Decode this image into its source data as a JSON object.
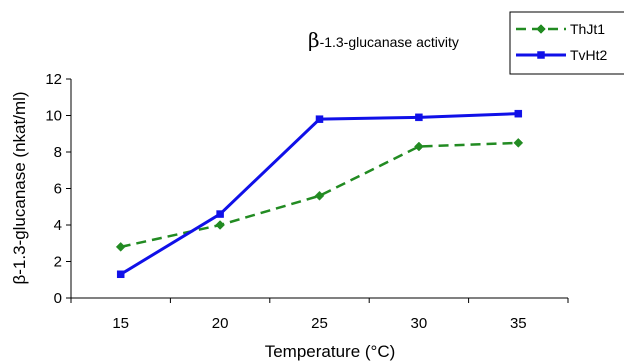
{
  "chart_data": {
    "type": "line",
    "title": "β-1.3-glucanase activity",
    "title_prefix": "β",
    "title_rest": "-1.3-glucanase activity",
    "xlabel": "Temperature (°C)",
    "ylabel": "β-1.3-glucanase (nkat/ml)",
    "x": [
      "15",
      "20",
      "25",
      "30",
      "35"
    ],
    "ylim": [
      0,
      12
    ],
    "yticks": [
      "0",
      "2",
      "4",
      "6",
      "8",
      "10",
      "12"
    ],
    "grid": false,
    "legend_position": "top-right",
    "series": [
      {
        "name": "ThJt1",
        "values": [
          2.8,
          4.0,
          5.6,
          8.3,
          8.5
        ],
        "color": "#228B22",
        "marker": "diamond",
        "line_style": "dashed"
      },
      {
        "name": "TvHt2",
        "values": [
          1.3,
          4.6,
          9.8,
          9.9,
          10.1
        ],
        "color": "#1010E8",
        "marker": "square",
        "line_style": "solid"
      }
    ]
  }
}
